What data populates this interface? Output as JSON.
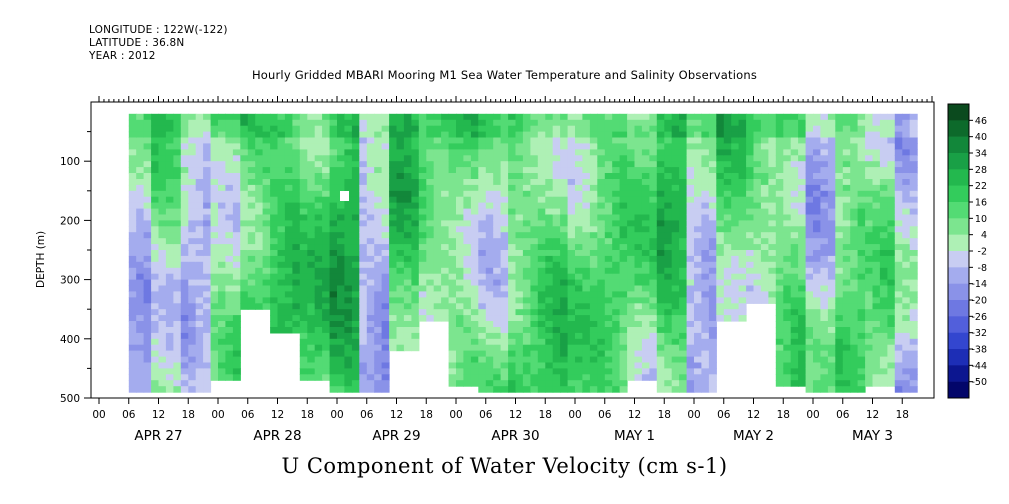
{
  "header": {
    "longitude": "LONGITUDE : 122W(-122)",
    "latitude": "LATITUDE : 36.8N",
    "year": "YEAR : 2012"
  },
  "chart_data": {
    "type": "heatmap",
    "title": "Hourly Gridded MBARI Mooring M1 Sea Water Temperature and Salinity Observations",
    "xlabel": "U Component of Water Velocity (cm s-1)",
    "ylabel": "DEPTH (m)",
    "y_ticks": [
      100,
      200,
      300,
      400,
      500
    ],
    "ylim": [
      500,
      10
    ],
    "x_hour_labels": [
      "00",
      "06",
      "12",
      "18",
      "00",
      "06",
      "12",
      "18",
      "00",
      "06",
      "12",
      "18",
      "00",
      "06",
      "12",
      "18",
      "00",
      "06",
      "12",
      "18",
      "00",
      "06",
      "12",
      "18",
      "00",
      "06",
      "12",
      "18"
    ],
    "x_date_labels": [
      "APR 27",
      "APR 28",
      "APR 29",
      "APR 30",
      "MAY  1",
      "MAY  2",
      "MAY  3"
    ],
    "data_time_range_hours": [
      6,
      165
    ],
    "data_depth_range_m": [
      20,
      485
    ],
    "colorbar_levels": [
      46,
      40,
      34,
      28,
      22,
      16,
      10,
      4,
      -2,
      -8,
      -14,
      -20,
      -26,
      -32,
      -38,
      -44,
      -50
    ],
    "colorbar_colors": [
      "#0b4a1e",
      "#0d6a2b",
      "#12873a",
      "#19a046",
      "#23b84e",
      "#33cc5c",
      "#53db74",
      "#7ce58f",
      "#aef0b5",
      "#c8cdf2",
      "#a4acee",
      "#8a92e8",
      "#6e78e2",
      "#525fdb",
      "#3346cf",
      "#1d2eb6",
      "#0c1690",
      "#03066a"
    ],
    "band_profile": [
      {
        "hour": 6,
        "depth_max": 485,
        "u": -8
      },
      {
        "hour": 12,
        "depth_max": 485,
        "u": 6
      },
      {
        "hour": 18,
        "depth_max": 485,
        "u": -4
      },
      {
        "hour": 24,
        "depth_max": 470,
        "u": 8
      },
      {
        "hour": 30,
        "depth_max": 345,
        "u": 18
      },
      {
        "hour": 36,
        "depth_max": 390,
        "u": 20
      },
      {
        "hour": 42,
        "depth_max": 470,
        "u": 14
      },
      {
        "hour": 48,
        "depth_max": 485,
        "u": 22
      },
      {
        "hour": 54,
        "depth_max": 485,
        "u": -12
      },
      {
        "hour": 60,
        "depth_max": 415,
        "u": 16
      },
      {
        "hour": 66,
        "depth_max": 370,
        "u": 6
      },
      {
        "hour": 72,
        "depth_max": 475,
        "u": 10
      },
      {
        "hour": 78,
        "depth_max": 485,
        "u": 4
      },
      {
        "hour": 84,
        "depth_max": 485,
        "u": 12
      },
      {
        "hour": 90,
        "depth_max": 485,
        "u": 14
      },
      {
        "hour": 96,
        "depth_max": 485,
        "u": 8
      },
      {
        "hour": 102,
        "depth_max": 485,
        "u": 10
      },
      {
        "hour": 108,
        "depth_max": 470,
        "u": 6
      },
      {
        "hour": 114,
        "depth_max": 485,
        "u": 18
      },
      {
        "hour": 120,
        "depth_max": 485,
        "u": -6
      },
      {
        "hour": 126,
        "depth_max": 370,
        "u": 12
      },
      {
        "hour": 132,
        "depth_max": 340,
        "u": 8
      },
      {
        "hour": 138,
        "depth_max": 475,
        "u": 14
      },
      {
        "hour": 144,
        "depth_max": 485,
        "u": -4
      },
      {
        "hour": 150,
        "depth_max": 485,
        "u": 10
      },
      {
        "hour": 156,
        "depth_max": 475,
        "u": 6
      },
      {
        "hour": 162,
        "depth_max": 485,
        "u": -10
      }
    ],
    "grid": false
  }
}
